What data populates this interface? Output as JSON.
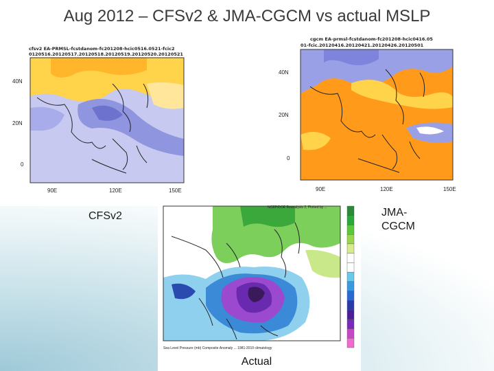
{
  "title": "Aug 2012 – CFSv2 & JMA-CGCM vs actual MSLP",
  "labels": {
    "cfsv2": "CFSv2",
    "jma_line1": "JMA-",
    "jma_line2": "CGCM",
    "actual": "Actual"
  },
  "cfsv2_map": {
    "header_line1": "cfsv2 EA-PRMSL-fcstdanom-fc201208-hcic0516.0521-fcic2",
    "header_line2": "0120516.20120517.20120518.20120519.20120520.20120521",
    "lat_ticks": [
      "40N",
      "20N",
      "0"
    ],
    "lon_ticks": [
      "90E",
      "120E",
      "150E"
    ]
  },
  "jma_map": {
    "header_line1": "cgcm EA-prmsl-fcstdanom-fc201208-hcic0416.05",
    "header_line2": "01-fcic.20120416.20120421.20120426.20120501",
    "lat_ticks": [
      "40N",
      "20N",
      "0"
    ],
    "lon_ticks": [
      "90E",
      "120E",
      "150E"
    ]
  },
  "actual_map": {
    "header": "NCEP/DOE Reanalysis 2, Plotted by ...",
    "footer": "Sea Level Pressure (mb) Composite Anomaly ... 1981-2010 climatology",
    "colorbar_colors": [
      "#f06ad0",
      "#c846c8",
      "#7a2ab8",
      "#4a1e9a",
      "#2a3aa8",
      "#2a6ad0",
      "#3a9ae0",
      "#6ac8ea",
      "#ffffff",
      "#ffffff",
      "#d6ec8a",
      "#9ad84a",
      "#5ac83a",
      "#2aa83a",
      "#2a8a3a"
    ]
  }
}
